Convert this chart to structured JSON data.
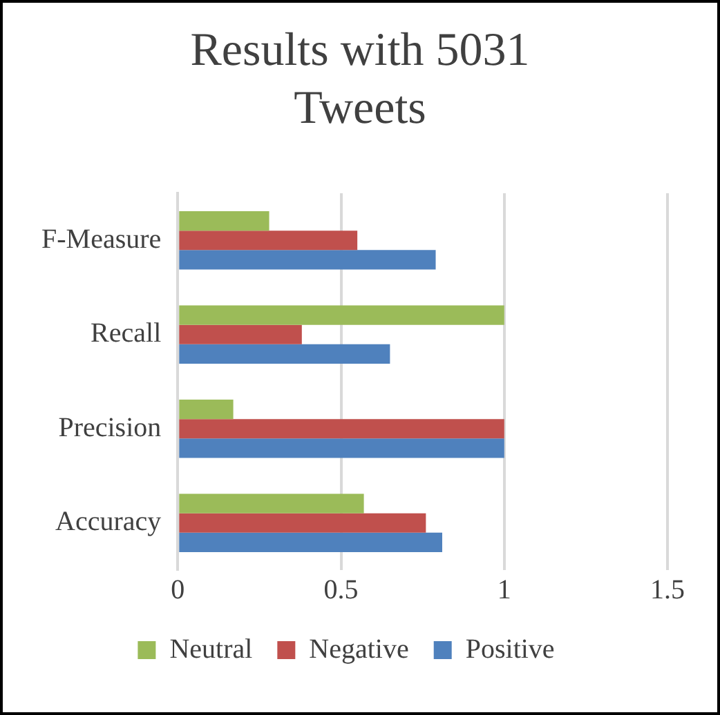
{
  "chart_data": {
    "type": "bar",
    "orientation": "horizontal",
    "title": "Results with 5031 Tweets",
    "categories": [
      "F-Measure",
      "Recall",
      "Precision",
      "Accuracy"
    ],
    "series": [
      {
        "name": "Neutral",
        "color": "#9bbb59",
        "values": [
          0.28,
          1.0,
          0.17,
          0.57
        ]
      },
      {
        "name": "Negative",
        "color": "#c0504d",
        "values": [
          0.55,
          0.38,
          1.0,
          0.76
        ]
      },
      {
        "name": "Positive",
        "color": "#4f81bd",
        "values": [
          0.79,
          0.65,
          1.0,
          0.81
        ]
      }
    ],
    "xlim": [
      0,
      1.5
    ],
    "xticks": [
      0,
      0.5,
      1,
      1.5
    ],
    "grid": "x",
    "legend": "bottom"
  }
}
